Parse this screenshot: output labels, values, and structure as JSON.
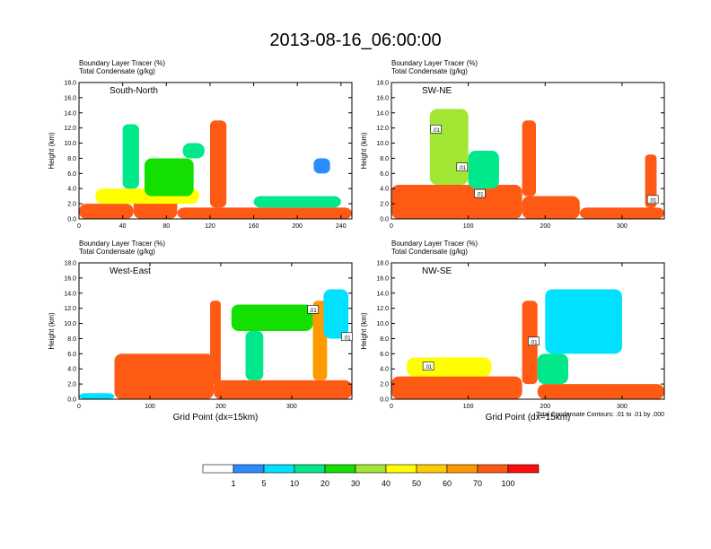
{
  "figure": {
    "title": "2013-08-16_06:00:00",
    "footnote": "Total Condensate Contours: .01 to .01 by .000"
  },
  "colors": {
    "levels": [
      "#ffffff",
      "#2a8cff",
      "#00e1ff",
      "#00e88a",
      "#13e000",
      "#a0e632",
      "#ffff00",
      "#ffcc00",
      "#ff9900",
      "#ff5a14",
      "#ff0d0d"
    ],
    "contour": "#000000"
  },
  "colorbar": {
    "labels": [
      "1",
      "5",
      "10",
      "20",
      "30",
      "40",
      "50",
      "60",
      "70",
      "100"
    ]
  },
  "chart_data": [
    {
      "type": "heatmap",
      "name": "South-North",
      "label": "South-North",
      "header_lines": [
        "Boundary Layer Tracer    (%)",
        "Total Condensate    (g/kg)"
      ],
      "ylabel": "Height (km)",
      "xlabel": "",
      "xlim": [
        0,
        250
      ],
      "ylim": [
        0,
        18
      ],
      "xticks": [
        0,
        40,
        80,
        120,
        160,
        200,
        240
      ],
      "yticks": [
        "0.0",
        "2.0",
        "4.0",
        "6.0",
        "8.0",
        "10.0",
        "12.0",
        "14.0",
        "16.0",
        "18.0"
      ],
      "contour_labels": [],
      "features": [
        {
          "x": [
            0,
            50
          ],
          "z": [
            0,
            2
          ],
          "level": 9
        },
        {
          "x": [
            50,
            90
          ],
          "z": [
            0,
            3.2
          ],
          "level": 9
        },
        {
          "x": [
            90,
            250
          ],
          "z": [
            0,
            1.5
          ],
          "level": 9
        },
        {
          "x": [
            15,
            110
          ],
          "z": [
            2,
            4
          ],
          "level": 6
        },
        {
          "x": [
            40,
            55
          ],
          "z": [
            4,
            12.5
          ],
          "level": 3
        },
        {
          "x": [
            60,
            105
          ],
          "z": [
            3,
            8
          ],
          "level": 4
        },
        {
          "x": [
            95,
            115
          ],
          "z": [
            8,
            10
          ],
          "level": 3
        },
        {
          "x": [
            120,
            135
          ],
          "z": [
            1.5,
            13
          ],
          "level": 9
        },
        {
          "x": [
            160,
            240
          ],
          "z": [
            1.5,
            3
          ],
          "level": 3
        },
        {
          "x": [
            215,
            230
          ],
          "z": [
            6,
            8
          ],
          "level": 1
        }
      ]
    },
    {
      "type": "heatmap",
      "name": "SW-NE",
      "label": "SW-NE",
      "header_lines": [
        "Boundary Layer Tracer    (%)",
        "Total Condensate    (g/kg)"
      ],
      "ylabel": "Height (km)",
      "xlabel": "",
      "xlim": [
        0,
        355
      ],
      "ylim": [
        0,
        18
      ],
      "xticks": [
        0,
        100,
        200,
        300
      ],
      "yticks": [
        "0.0",
        "2.0",
        "4.0",
        "6.0",
        "8.0",
        "10.0",
        "12.0",
        "14.0",
        "16.0",
        "18.0"
      ],
      "contour_labels": [
        {
          "text": ".01",
          "x": 58,
          "z": 11.8
        },
        {
          "text": ".01",
          "x": 92,
          "z": 6.8
        },
        {
          "text": ".01",
          "x": 115,
          "z": 3.3
        },
        {
          "text": ".01",
          "x": 340,
          "z": 2.5
        }
      ],
      "features": [
        {
          "x": [
            0,
            170
          ],
          "z": [
            0,
            4.5
          ],
          "level": 9
        },
        {
          "x": [
            170,
            245
          ],
          "z": [
            0,
            3
          ],
          "level": 9
        },
        {
          "x": [
            245,
            355
          ],
          "z": [
            0,
            1.5
          ],
          "level": 9
        },
        {
          "x": [
            50,
            100
          ],
          "z": [
            4.5,
            14.5
          ],
          "level": 5
        },
        {
          "x": [
            100,
            140
          ],
          "z": [
            4,
            9
          ],
          "level": 3
        },
        {
          "x": [
            170,
            188
          ],
          "z": [
            3,
            13
          ],
          "level": 9
        },
        {
          "x": [
            330,
            345
          ],
          "z": [
            1.5,
            8.5
          ],
          "level": 9
        }
      ]
    },
    {
      "type": "heatmap",
      "name": "West-East",
      "label": "West-East",
      "header_lines": [
        "Boundary Layer Tracer    (%)",
        "Total Condensate    (g/kg)"
      ],
      "ylabel": "Height (km)",
      "xlabel": "Grid Point (dx=15km)",
      "xlim": [
        0,
        385
      ],
      "ylim": [
        0,
        18
      ],
      "xticks": [
        0,
        100,
        200,
        300
      ],
      "yticks": [
        "0.0",
        "2.0",
        "4.0",
        "6.0",
        "8.0",
        "10.0",
        "12.0",
        "14.0",
        "16.0",
        "18.0"
      ],
      "contour_labels": [
        {
          "text": ".01",
          "x": 330,
          "z": 11.8
        },
        {
          "text": ".01",
          "x": 378,
          "z": 8.2
        }
      ],
      "features": [
        {
          "x": [
            0,
            50
          ],
          "z": [
            0,
            0.8
          ],
          "level": 2
        },
        {
          "x": [
            50,
            190
          ],
          "z": [
            0,
            6
          ],
          "level": 9
        },
        {
          "x": [
            190,
            385
          ],
          "z": [
            0,
            2.5
          ],
          "level": 9
        },
        {
          "x": [
            185,
            200
          ],
          "z": [
            2,
            13
          ],
          "level": 9
        },
        {
          "x": [
            215,
            330
          ],
          "z": [
            9,
            12.5
          ],
          "level": 4
        },
        {
          "x": [
            235,
            260
          ],
          "z": [
            2.5,
            9
          ],
          "level": 3
        },
        {
          "x": [
            330,
            350
          ],
          "z": [
            2.5,
            13
          ],
          "level": 8
        },
        {
          "x": [
            345,
            380
          ],
          "z": [
            8,
            14.5
          ],
          "level": 2
        }
      ]
    },
    {
      "type": "heatmap",
      "name": "NW-SE",
      "label": "NW-SE",
      "header_lines": [
        "Boundary Layer Tracer    (%)",
        "Total Condensate    (g/kg)"
      ],
      "ylabel": "Height (km)",
      "xlabel": "Grid Point (dx=15km)",
      "xlim": [
        0,
        355
      ],
      "ylim": [
        0,
        18
      ],
      "xticks": [
        0,
        100,
        200,
        300
      ],
      "yticks": [
        "0.0",
        "2.0",
        "4.0",
        "6.0",
        "8.0",
        "10.0",
        "12.0",
        "14.0",
        "16.0",
        "18.0"
      ],
      "contour_labels": [
        {
          "text": ".01",
          "x": 48,
          "z": 4.3
        },
        {
          "text": ".01",
          "x": 185,
          "z": 7.6
        }
      ],
      "features": [
        {
          "x": [
            0,
            170
          ],
          "z": [
            0,
            3
          ],
          "level": 9
        },
        {
          "x": [
            20,
            130
          ],
          "z": [
            3,
            5.5
          ],
          "level": 6
        },
        {
          "x": [
            170,
            190
          ],
          "z": [
            2,
            13
          ],
          "level": 9
        },
        {
          "x": [
            190,
            355
          ],
          "z": [
            0,
            2
          ],
          "level": 9
        },
        {
          "x": [
            200,
            300
          ],
          "z": [
            6,
            14.5
          ],
          "level": 2
        },
        {
          "x": [
            190,
            230
          ],
          "z": [
            2,
            6
          ],
          "level": 3
        }
      ]
    }
  ]
}
